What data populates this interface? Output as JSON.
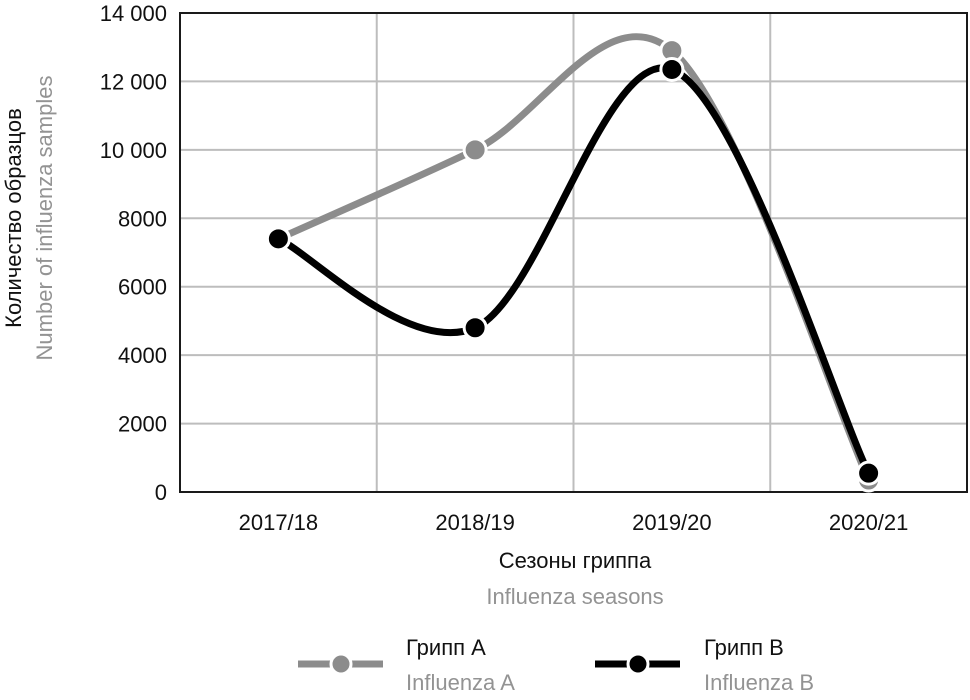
{
  "colors": {
    "series_a": "#8c8c8c",
    "series_b": "#000000",
    "grid": "#bdbdbd",
    "frame": "#1a1a1a",
    "secondary_text": "#939393",
    "text": "#111111"
  },
  "chart_data": {
    "type": "line",
    "categories": [
      "2017/18",
      "2018/19",
      "2019/20",
      "2020/21"
    ],
    "series": [
      {
        "name": "Грипп A",
        "name_en": "Influenza A",
        "values": [
          7400,
          10000,
          12900,
          350
        ]
      },
      {
        "name": "Грипп B",
        "name_en": "Influenza B",
        "values": [
          7400,
          4800,
          12350,
          550
        ]
      }
    ],
    "ylim": [
      0,
      14000
    ],
    "yticks": [
      0,
      2000,
      4000,
      6000,
      8000,
      10000,
      12000,
      14000
    ],
    "ytick_labels": [
      "0",
      "2000",
      "4000",
      "6000",
      "8000",
      "10 000",
      "12 000",
      "14 000"
    ],
    "xlabel": "Сезоны гриппа",
    "xlabel_en": "Influenza seasons",
    "ylabel": "Количество образцов",
    "ylabel_en": "Number of influenza samples",
    "grid": true,
    "legend_position": "bottom"
  }
}
